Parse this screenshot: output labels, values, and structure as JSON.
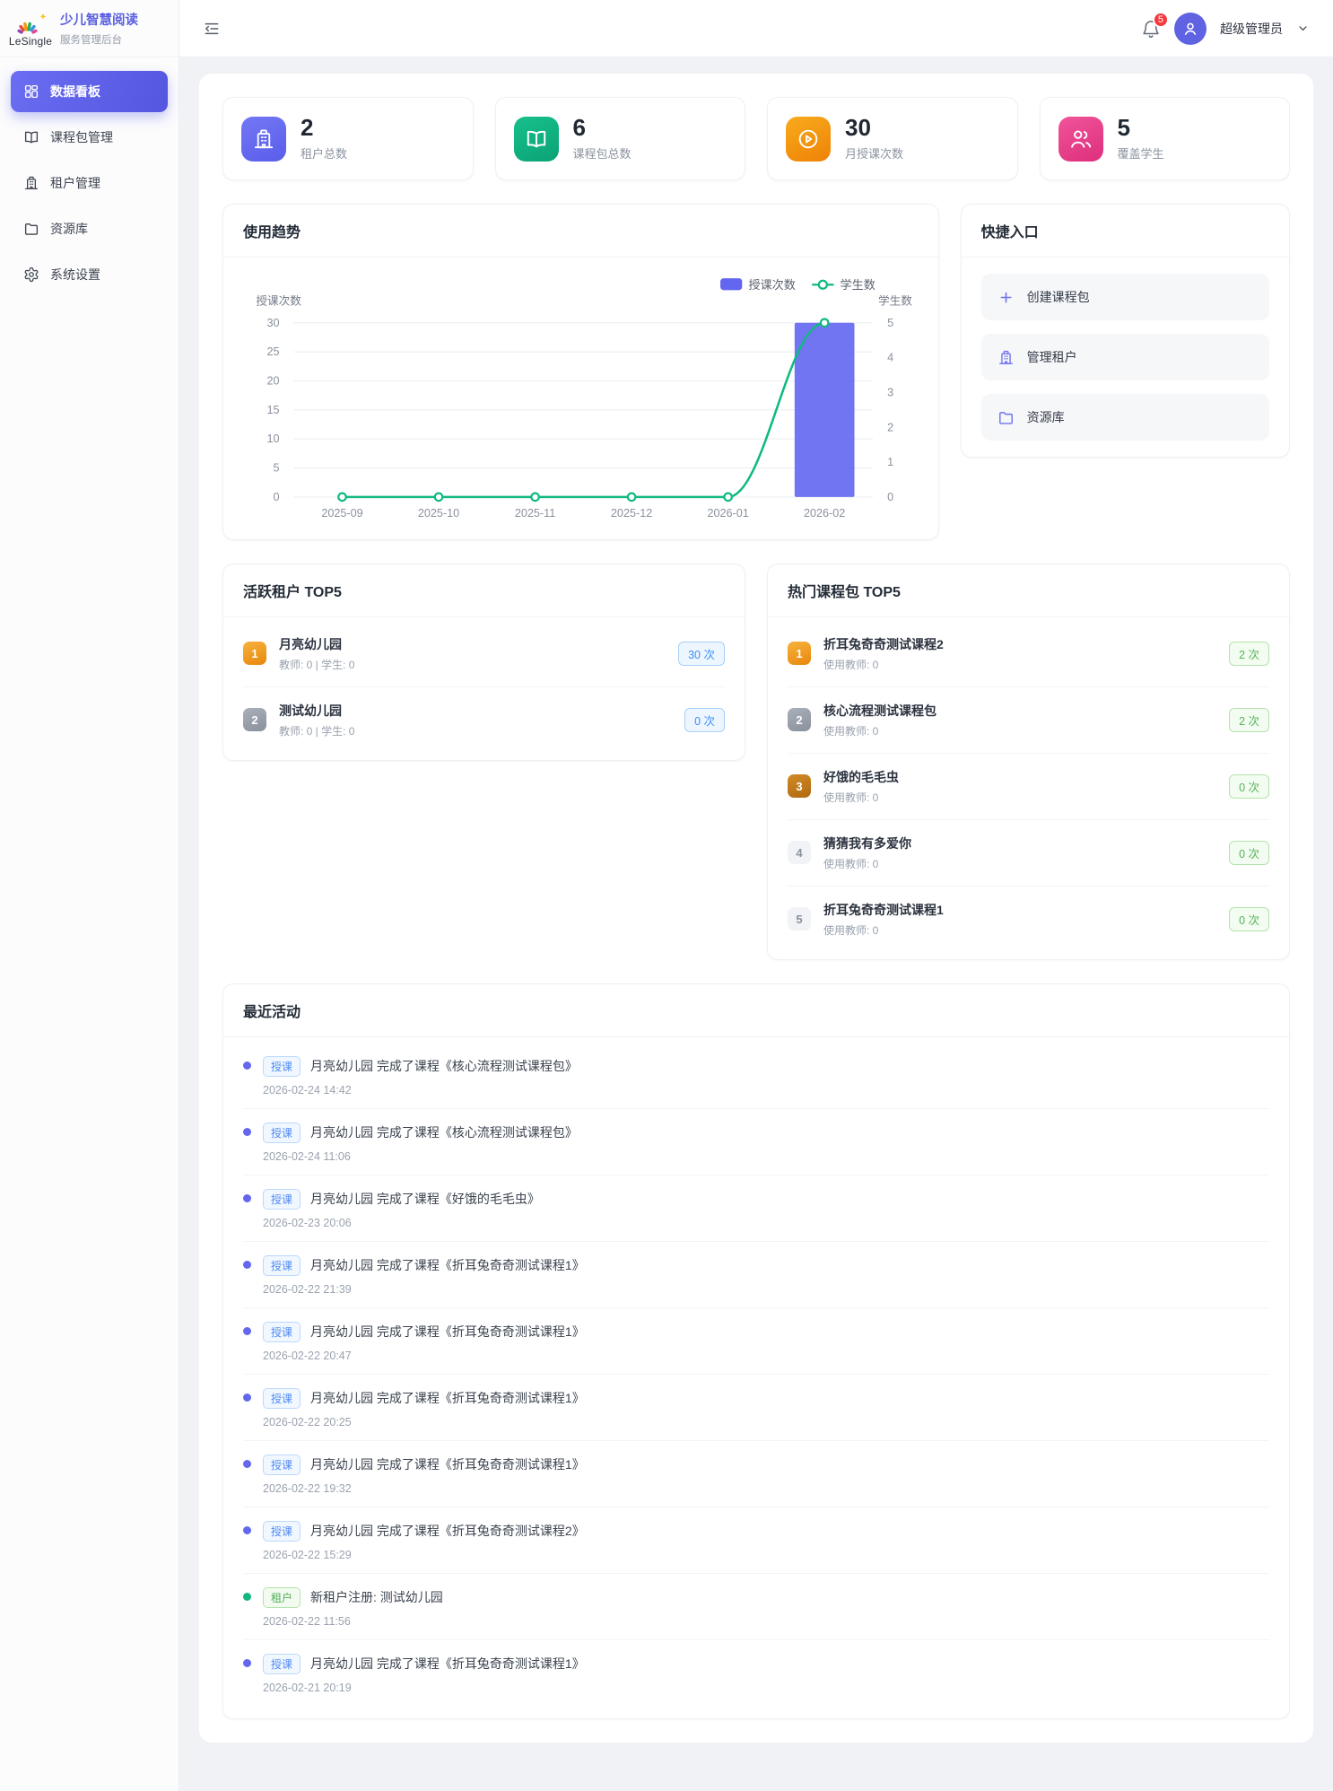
{
  "brand": {
    "logo_text": "LeSingle",
    "title": "少儿智慧阅读",
    "subtitle": "服务管理后台"
  },
  "sidebar": {
    "items": [
      {
        "label": "数据看板",
        "icon": "dashboard-icon",
        "state": "active"
      },
      {
        "label": "课程包管理",
        "icon": "book-icon",
        "state": "normal"
      },
      {
        "label": "租户管理",
        "icon": "building-icon",
        "state": "normal"
      },
      {
        "label": "资源库",
        "icon": "folder-icon",
        "state": "normal"
      },
      {
        "label": "系统设置",
        "icon": "gear-icon",
        "state": "normal"
      }
    ]
  },
  "header": {
    "notification_count": "5",
    "user_name": "超级管理员"
  },
  "stats": [
    {
      "value": "2",
      "label": "租户总数",
      "icon": "building-icon",
      "color": "#6366f1",
      "bg": "linear-gradient(155deg,#7478f4,#595dea)"
    },
    {
      "value": "6",
      "label": "课程包总数",
      "icon": "book-icon",
      "color": "#10b981",
      "bg": "linear-gradient(155deg,#17c08b,#0ba276)"
    },
    {
      "value": "30",
      "label": "月授课次数",
      "icon": "play-icon",
      "color": "#f59e0b",
      "bg": "linear-gradient(155deg,#f8ab1d,#ee8206)"
    },
    {
      "value": "5",
      "label": "覆盖学生",
      "icon": "users-icon",
      "color": "#ec4899",
      "bg": "linear-gradient(155deg,#f0549a,#de2f7c)"
    }
  ],
  "usage_card": {
    "title": "使用趋势"
  },
  "chart_data": {
    "type": "bar+line",
    "categories": [
      "2025-09",
      "2025-10",
      "2025-11",
      "2025-12",
      "2026-01",
      "2026-02"
    ],
    "series": [
      {
        "name": "授课次数",
        "type": "bar",
        "axis": "left",
        "color": "#6366f1",
        "values": [
          0,
          0,
          0,
          0,
          0,
          30
        ]
      },
      {
        "name": "学生数",
        "type": "line",
        "axis": "right",
        "color": "#10b981",
        "values": [
          0,
          0,
          0,
          0,
          0,
          5
        ]
      }
    ],
    "left_axis": {
      "name": "授课次数",
      "min": 0,
      "max": 30,
      "ticks": [
        0,
        5,
        10,
        15,
        20,
        25,
        30
      ]
    },
    "right_axis": {
      "name": "学生数",
      "min": 0,
      "max": 5,
      "ticks": [
        0,
        1,
        2,
        3,
        4,
        5
      ]
    },
    "legend": [
      "授课次数",
      "学生数"
    ],
    "legend_position": "top-right",
    "grid": "horizontal"
  },
  "quick": {
    "title": "快捷入口",
    "items": [
      {
        "label": "创建课程包",
        "icon": "plus-icon"
      },
      {
        "label": "管理租户",
        "icon": "building-icon"
      },
      {
        "label": "资源库",
        "icon": "folder-icon"
      }
    ]
  },
  "active_tenants": {
    "title": "活跃租户 TOP5",
    "items": [
      {
        "rank": "1",
        "name": "月亮幼儿园",
        "meta": "教师: 0 | 学生: 0",
        "count": "30 次"
      },
      {
        "rank": "2",
        "name": "测试幼儿园",
        "meta": "教师: 0 | 学生: 0",
        "count": "0 次"
      }
    ]
  },
  "hot_packages": {
    "title": "热门课程包 TOP5",
    "items": [
      {
        "rank": "1",
        "name": "折耳兔奇奇测试课程2",
        "meta": "使用教师: 0",
        "count": "2 次"
      },
      {
        "rank": "2",
        "name": "核心流程测试课程包",
        "meta": "使用教师: 0",
        "count": "2 次"
      },
      {
        "rank": "3",
        "name": "好饿的毛毛虫",
        "meta": "使用教师: 0",
        "count": "0 次"
      },
      {
        "rank": "4",
        "name": "猜猜我有多爱你",
        "meta": "使用教师: 0",
        "count": "0 次"
      },
      {
        "rank": "5",
        "name": "折耳兔奇奇测试课程1",
        "meta": "使用教师: 0",
        "count": "0 次"
      }
    ]
  },
  "activities": {
    "title": "最近活动",
    "items": [
      {
        "kind": "teach",
        "badge": "授课",
        "text": "月亮幼儿园 完成了课程《核心流程测试课程包》",
        "time": "2026-02-24 14:42"
      },
      {
        "kind": "teach",
        "badge": "授课",
        "text": "月亮幼儿园 完成了课程《核心流程测试课程包》",
        "time": "2026-02-24 11:06"
      },
      {
        "kind": "teach",
        "badge": "授课",
        "text": "月亮幼儿园 完成了课程《好饿的毛毛虫》",
        "time": "2026-02-23 20:06"
      },
      {
        "kind": "teach",
        "badge": "授课",
        "text": "月亮幼儿园 完成了课程《折耳兔奇奇测试课程1》",
        "time": "2026-02-22 21:39"
      },
      {
        "kind": "teach",
        "badge": "授课",
        "text": "月亮幼儿园 完成了课程《折耳兔奇奇测试课程1》",
        "time": "2026-02-22 20:47"
      },
      {
        "kind": "teach",
        "badge": "授课",
        "text": "月亮幼儿园 完成了课程《折耳兔奇奇测试课程1》",
        "time": "2026-02-22 20:25"
      },
      {
        "kind": "teach",
        "badge": "授课",
        "text": "月亮幼儿园 完成了课程《折耳兔奇奇测试课程1》",
        "time": "2026-02-22 19:32"
      },
      {
        "kind": "teach",
        "badge": "授课",
        "text": "月亮幼儿园 完成了课程《折耳兔奇奇测试课程2》",
        "time": "2026-02-22 15:29"
      },
      {
        "kind": "tenant",
        "badge": "租户",
        "text": "新租户注册: 测试幼儿园",
        "time": "2026-02-22 11:56"
      },
      {
        "kind": "teach",
        "badge": "授课",
        "text": "月亮幼儿园 完成了课程《折耳兔奇奇测试课程1》",
        "time": "2026-02-21 20:19"
      }
    ]
  }
}
